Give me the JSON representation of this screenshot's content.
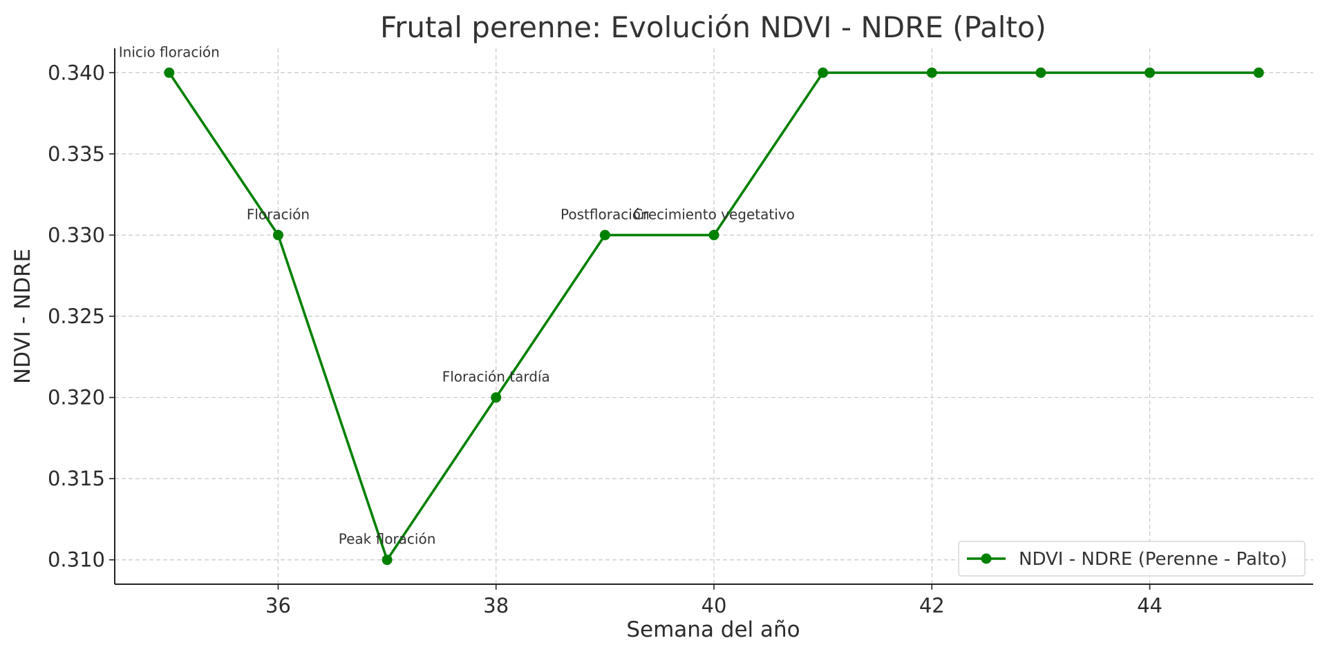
{
  "chart_data": {
    "type": "line",
    "title": "Frutal perenne: Evolución NDVI - NDRE (Palto)",
    "xlabel": "Semana del año",
    "ylabel": "NDVI - NDRE",
    "xlim": [
      34.5,
      45.5
    ],
    "ylim": [
      0.3085,
      0.3415
    ],
    "xticks": [
      36,
      38,
      40,
      42,
      44
    ],
    "xtick_labels": [
      "36",
      "38",
      "40",
      "42",
      "44"
    ],
    "yticks": [
      0.31,
      0.315,
      0.32,
      0.325,
      0.33,
      0.335,
      0.34
    ],
    "ytick_labels": [
      "0.310",
      "0.315",
      "0.320",
      "0.325",
      "0.330",
      "0.335",
      "0.340"
    ],
    "grid": true,
    "legend_position": "bottom-right",
    "series": [
      {
        "name": "NDVI - NDRE (Perenne - Palto)",
        "color": "#008000",
        "marker": "circle",
        "x": [
          35,
          36,
          37,
          38,
          39,
          40,
          41,
          42,
          43,
          44,
          45
        ],
        "y": [
          0.34,
          0.33,
          0.31,
          0.32,
          0.33,
          0.33,
          0.34,
          0.34,
          0.34,
          0.34,
          0.34
        ]
      }
    ],
    "annotations": [
      {
        "text": "Inicio floración",
        "x": 35,
        "y": 0.34
      },
      {
        "text": "Floración",
        "x": 36,
        "y": 0.33
      },
      {
        "text": "Peak floración",
        "x": 37,
        "y": 0.31
      },
      {
        "text": "Floración tardía",
        "x": 38,
        "y": 0.32
      },
      {
        "text": "Postfloración",
        "x": 39,
        "y": 0.33
      },
      {
        "text": "Crecimiento vegetativo",
        "x": 40,
        "y": 0.33
      }
    ]
  }
}
